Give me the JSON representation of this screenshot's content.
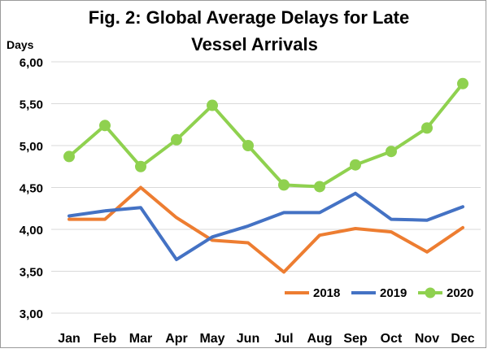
{
  "chart_data": {
    "type": "line",
    "title_line1": "Fig. 2: Global Average Delays for Late",
    "title_line2": "Vessel Arrivals",
    "ylabel": "Days",
    "xlabel": "",
    "categories": [
      "Jan",
      "Feb",
      "Mar",
      "Apr",
      "May",
      "Jun",
      "Jul",
      "Aug",
      "Sep",
      "Oct",
      "Nov",
      "Dec"
    ],
    "ylim": [
      3.0,
      6.0
    ],
    "yticks": [
      {
        "value": 3.0,
        "label": "3,00"
      },
      {
        "value": 3.5,
        "label": "3,50"
      },
      {
        "value": 4.0,
        "label": "4,00"
      },
      {
        "value": 4.5,
        "label": "4,50"
      },
      {
        "value": 5.0,
        "label": "5,00"
      },
      {
        "value": 5.5,
        "label": "5,50"
      },
      {
        "value": 6.0,
        "label": "6,00"
      }
    ],
    "grid": true,
    "legend_position": "bottom-right",
    "series": [
      {
        "name": "2018",
        "color": "#ed7d31",
        "markers": false,
        "values": [
          4.12,
          4.12,
          4.5,
          4.14,
          3.87,
          3.84,
          3.49,
          3.93,
          4.01,
          3.97,
          3.73,
          4.02
        ]
      },
      {
        "name": "2019",
        "color": "#4472c4",
        "markers": false,
        "values": [
          4.16,
          4.22,
          4.26,
          3.64,
          3.91,
          4.04,
          4.2,
          4.2,
          4.43,
          4.12,
          4.11,
          4.27
        ]
      },
      {
        "name": "2020",
        "color": "#8fd14f",
        "markers": true,
        "values": [
          4.87,
          5.24,
          4.75,
          5.07,
          5.48,
          5.0,
          4.53,
          4.51,
          4.77,
          4.93,
          5.21,
          5.74
        ]
      }
    ]
  }
}
